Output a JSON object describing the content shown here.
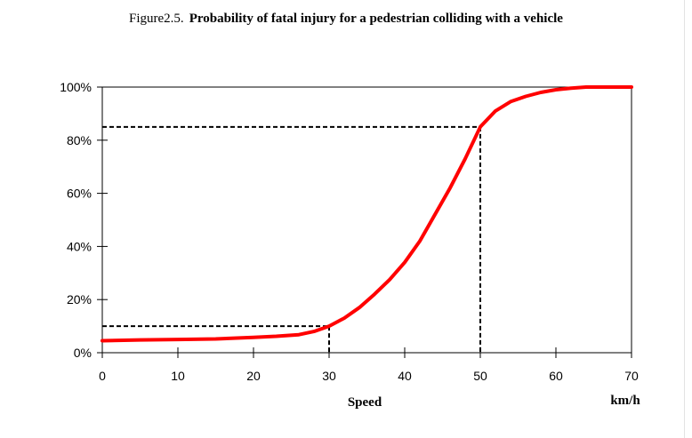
{
  "caption": {
    "label": "Figure2.5.",
    "title": "Probability of fatal injury for a pedestrian colliding with a vehicle"
  },
  "chart_data": {
    "type": "line",
    "xlabel": "Speed",
    "xunit": "km/h",
    "ylabel": "",
    "xlim": [
      0,
      70
    ],
    "ylim": [
      0,
      100
    ],
    "xticks": [
      0,
      10,
      20,
      30,
      40,
      50,
      60,
      70
    ],
    "yticks": [
      0,
      20,
      40,
      60,
      80,
      100
    ],
    "ytick_labels": [
      "0%",
      "20%",
      "40%",
      "60%",
      "80%",
      "100%"
    ],
    "grid": false,
    "colors": {
      "curve": "#ff0000",
      "axes": "#000000"
    },
    "series": [
      {
        "x": [
          0,
          5,
          10,
          15,
          20,
          23,
          26,
          28,
          30,
          32,
          34,
          36,
          38,
          40,
          42,
          44,
          46,
          48,
          50,
          52,
          54,
          56,
          58,
          60,
          62,
          64,
          66,
          70
        ],
        "y": [
          4.5,
          4.8,
          5.0,
          5.2,
          5.8,
          6.2,
          6.8,
          8.0,
          10.0,
          13.0,
          17.0,
          22.0,
          27.5,
          34.0,
          42.0,
          52.0,
          62.0,
          73.0,
          85.0,
          91.0,
          94.5,
          96.5,
          98.0,
          99.0,
          99.6,
          100,
          100,
          100
        ]
      }
    ],
    "reference_lines": [
      {
        "x": 30,
        "y": 10
      },
      {
        "x": 50,
        "y": 85
      }
    ]
  }
}
